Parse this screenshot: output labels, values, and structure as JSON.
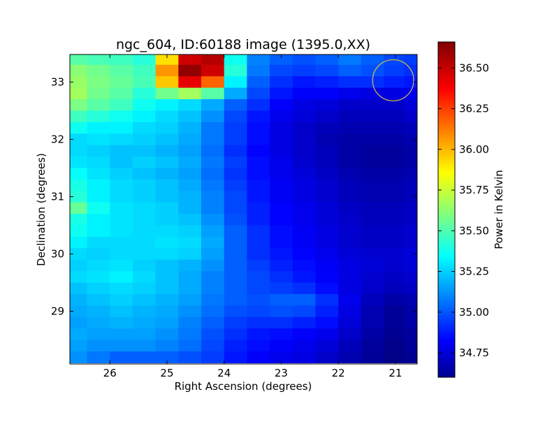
{
  "chart_data": {
    "type": "heatmap",
    "title": "ngc_604, ID:60188 image (1395.0,XX)",
    "xlabel": "Right Ascension (degrees)",
    "ylabel": "Declination (degrees)",
    "colorbar_label": "Power in Kelvin",
    "colormap": "jet",
    "x_inverted": true,
    "xlim": [
      26.7,
      20.62
    ],
    "ylim": [
      28.08,
      33.48
    ],
    "xticks": [
      26,
      25,
      24,
      23,
      22,
      21
    ],
    "xtick_labels": [
      "26",
      "25",
      "24",
      "23",
      "22",
      "21"
    ],
    "yticks": [
      29,
      30,
      31,
      32,
      33
    ],
    "ytick_labels": [
      "29",
      "30",
      "31",
      "32",
      "33"
    ],
    "clim": [
      34.6,
      36.66
    ],
    "colorbar_ticks": [
      34.75,
      35.0,
      35.25,
      35.5,
      35.75,
      36.0,
      36.25,
      36.5
    ],
    "colorbar_tick_labels": [
      "34.75",
      "35.00",
      "35.25",
      "35.50",
      "35.75",
      "36.00",
      "36.25",
      "36.50"
    ],
    "grid": {
      "ra": [
        26.6,
        26.2,
        25.8,
        25.4,
        25.0,
        24.6,
        24.2,
        23.8,
        23.4,
        23.0,
        22.6,
        22.2,
        21.8,
        21.4,
        21.0,
        20.7
      ],
      "dec": [
        33.4,
        33.2,
        33.0,
        32.8,
        32.6,
        32.4,
        32.2,
        32.0,
        31.8,
        31.6,
        31.4,
        31.2,
        31.0,
        30.8,
        30.6,
        30.4,
        30.2,
        30.0,
        29.8,
        29.6,
        29.4,
        29.2,
        29.0,
        28.8,
        28.6,
        28.4,
        28.2
      ],
      "values": [
        [
          35.55,
          35.52,
          35.5,
          35.45,
          35.95,
          36.5,
          36.55,
          35.4,
          35.12,
          35.05,
          35.02,
          35.05,
          35.1,
          35.05,
          35.0,
          34.98
        ],
        [
          35.65,
          35.6,
          35.55,
          35.5,
          36.1,
          36.62,
          36.5,
          35.45,
          35.1,
          35.0,
          34.98,
          35.0,
          35.05,
          35.02,
          34.98,
          34.95
        ],
        [
          35.68,
          35.62,
          35.58,
          35.52,
          36.0,
          36.45,
          36.2,
          35.35,
          35.05,
          34.95,
          34.9,
          34.92,
          34.95,
          34.95,
          34.92,
          34.9
        ],
        [
          35.7,
          35.6,
          35.55,
          35.45,
          35.6,
          35.7,
          35.55,
          35.2,
          35.0,
          34.9,
          34.85,
          34.85,
          34.82,
          34.8,
          34.8,
          34.82
        ],
        [
          35.62,
          35.55,
          35.5,
          35.4,
          35.35,
          35.3,
          35.2,
          35.05,
          34.95,
          34.85,
          34.8,
          34.78,
          34.75,
          34.75,
          34.75,
          34.78
        ],
        [
          35.5,
          35.45,
          35.4,
          35.35,
          35.3,
          35.25,
          35.15,
          35.0,
          34.9,
          34.82,
          34.78,
          34.75,
          34.72,
          34.72,
          34.72,
          34.75
        ],
        [
          35.4,
          35.35,
          35.35,
          35.3,
          35.28,
          35.22,
          35.1,
          34.98,
          34.88,
          34.8,
          34.75,
          34.72,
          34.7,
          34.7,
          34.7,
          34.72
        ],
        [
          35.3,
          35.32,
          35.3,
          35.28,
          35.25,
          35.2,
          35.1,
          34.98,
          34.88,
          34.8,
          34.75,
          34.7,
          34.68,
          34.68,
          34.68,
          34.7
        ],
        [
          35.3,
          35.28,
          35.25,
          35.25,
          35.22,
          35.18,
          35.08,
          34.95,
          34.86,
          34.8,
          34.75,
          34.72,
          34.68,
          34.66,
          34.66,
          34.68
        ],
        [
          35.32,
          35.3,
          35.25,
          35.28,
          35.25,
          35.2,
          35.1,
          34.98,
          34.88,
          34.82,
          34.76,
          34.72,
          34.68,
          34.66,
          34.66,
          34.68
        ],
        [
          35.38,
          35.32,
          35.28,
          35.25,
          35.22,
          35.18,
          35.08,
          34.96,
          34.88,
          34.82,
          34.78,
          34.74,
          34.7,
          34.68,
          34.68,
          34.7
        ],
        [
          35.42,
          35.35,
          35.3,
          35.28,
          35.25,
          35.2,
          35.1,
          34.98,
          34.9,
          34.84,
          34.8,
          34.76,
          34.72,
          34.7,
          34.7,
          34.72
        ],
        [
          35.45,
          35.35,
          35.3,
          35.28,
          35.25,
          35.22,
          35.12,
          35.0,
          34.9,
          34.84,
          34.8,
          34.76,
          34.72,
          34.7,
          34.7,
          34.72
        ],
        [
          35.58,
          35.4,
          35.32,
          35.3,
          35.28,
          35.22,
          35.12,
          35.0,
          34.92,
          34.86,
          34.82,
          34.78,
          34.74,
          34.72,
          34.72,
          34.74
        ],
        [
          35.42,
          35.35,
          35.32,
          35.3,
          35.28,
          35.25,
          35.15,
          35.02,
          34.92,
          34.86,
          34.82,
          34.78,
          34.75,
          34.72,
          34.72,
          34.74
        ],
        [
          35.4,
          35.35,
          35.32,
          35.3,
          35.3,
          35.28,
          35.18,
          35.05,
          34.95,
          34.88,
          34.84,
          34.8,
          34.76,
          34.74,
          34.74,
          34.76
        ],
        [
          35.35,
          35.3,
          35.3,
          35.3,
          35.32,
          35.3,
          35.2,
          35.05,
          34.95,
          34.88,
          34.84,
          34.8,
          34.76,
          34.74,
          34.74,
          34.76
        ],
        [
          35.3,
          35.28,
          35.3,
          35.3,
          35.3,
          35.28,
          35.18,
          35.05,
          34.95,
          34.9,
          34.86,
          34.82,
          34.78,
          34.76,
          34.76,
          34.78
        ],
        [
          35.28,
          35.3,
          35.32,
          35.28,
          35.25,
          35.22,
          35.15,
          35.05,
          34.98,
          34.92,
          34.88,
          34.84,
          34.8,
          34.78,
          34.76,
          34.78
        ],
        [
          35.3,
          35.32,
          35.35,
          35.3,
          35.25,
          35.2,
          35.12,
          35.05,
          35.0,
          34.95,
          34.9,
          34.85,
          34.8,
          34.76,
          34.74,
          34.76
        ],
        [
          35.25,
          35.28,
          35.3,
          35.28,
          35.25,
          35.2,
          35.12,
          35.05,
          35.0,
          34.98,
          34.95,
          34.88,
          34.8,
          34.75,
          34.72,
          34.74
        ],
        [
          35.22,
          35.25,
          35.28,
          35.25,
          35.22,
          35.18,
          35.1,
          35.05,
          35.02,
          35.05,
          35.05,
          34.95,
          34.82,
          34.72,
          34.68,
          34.7
        ],
        [
          35.2,
          35.22,
          35.25,
          35.22,
          35.2,
          35.15,
          35.08,
          35.02,
          35.0,
          35.02,
          35.0,
          34.92,
          34.8,
          34.7,
          34.65,
          34.68
        ],
        [
          35.18,
          35.2,
          35.22,
          35.2,
          35.18,
          35.12,
          35.05,
          34.98,
          34.95,
          34.95,
          34.92,
          34.88,
          34.78,
          34.7,
          34.65,
          34.68
        ],
        [
          35.2,
          35.18,
          35.18,
          35.18,
          35.15,
          35.1,
          35.02,
          34.95,
          34.9,
          34.88,
          34.85,
          34.82,
          34.75,
          34.68,
          34.64,
          34.66
        ],
        [
          35.18,
          35.15,
          35.15,
          35.15,
          35.12,
          35.08,
          35.0,
          34.92,
          34.88,
          34.85,
          34.82,
          34.78,
          34.72,
          34.66,
          34.62,
          34.65
        ],
        [
          35.15,
          35.1,
          35.05,
          35.05,
          35.05,
          35.02,
          34.98,
          34.9,
          34.85,
          34.82,
          34.8,
          34.75,
          34.7,
          34.65,
          34.62,
          34.64
        ]
      ]
    },
    "annotations": [
      {
        "type": "circle",
        "ra": 21.04,
        "dec": 33.03,
        "radius_deg": 0.36,
        "color": "#cbb44a"
      }
    ]
  }
}
